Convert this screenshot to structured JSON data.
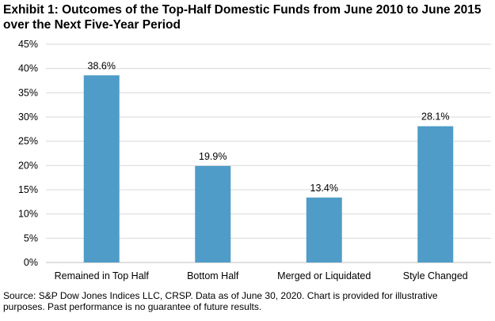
{
  "title": "Exhibit 1: Outcomes of the Top-Half Domestic Funds from June 2010 to June 2015 over the Next Five-Year Period",
  "source": "Source: S&P Dow Jones Indices LLC, CRSP.  Data as of June 30, 2020.  Chart is provided for illustrative purposes.  Past performance is no guarantee of future results.",
  "chart_data": {
    "type": "bar",
    "title": "Exhibit 1: Outcomes of the Top-Half Domestic Funds from June 2010 to June 2015 over the Next Five-Year Period",
    "xlabel": "",
    "ylabel": "",
    "categories": [
      "Remained in Top Half",
      "Bottom Half",
      "Merged or Liquidated",
      "Style Changed"
    ],
    "values": [
      38.6,
      19.9,
      13.4,
      28.1
    ],
    "value_labels": [
      "38.6%",
      "19.9%",
      "13.4%",
      "28.1%"
    ],
    "ylim": [
      0,
      45
    ],
    "yticks": [
      "0%",
      "5%",
      "10%",
      "15%",
      "20%",
      "25%",
      "30%",
      "35%",
      "40%",
      "45%"
    ],
    "grid": true,
    "legend": "none",
    "bar_color": "#4f9cc8",
    "grid_color": "#d9d9d9"
  }
}
